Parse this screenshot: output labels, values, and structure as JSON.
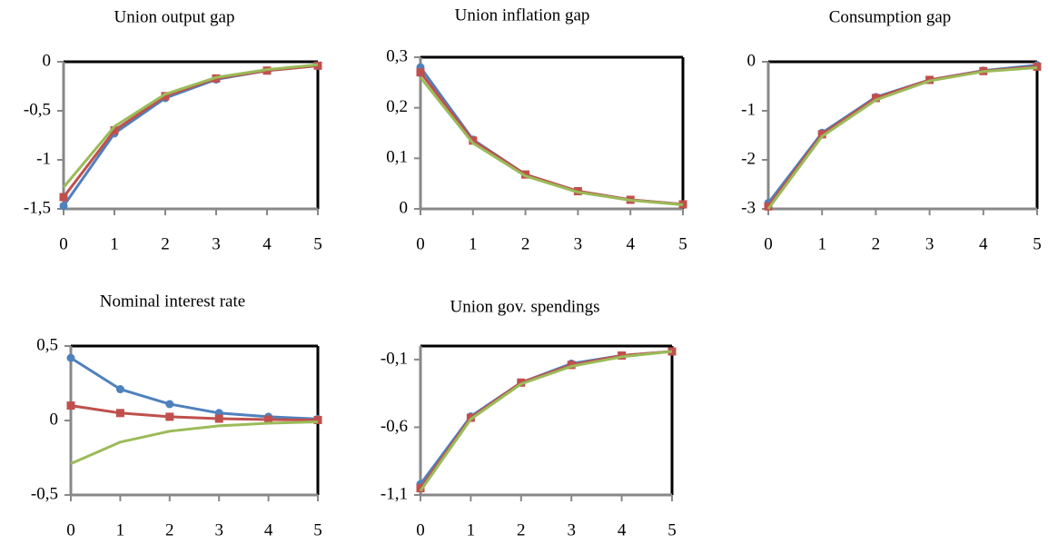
{
  "chart_data": [
    {
      "type": "line",
      "title": "Union output gap",
      "x": [
        0,
        1,
        2,
        3,
        4,
        5
      ],
      "xlim": [
        0,
        5
      ],
      "xticks": [
        0,
        1,
        2,
        3,
        4,
        5
      ],
      "ylim": [
        -1.5,
        0
      ],
      "yticks": [
        0,
        {
          "value": -0.5,
          "label": "-0,5"
        },
        -1,
        {
          "value": -1.5,
          "label": "-1,5"
        }
      ],
      "series": [
        {
          "color": "#4f81bd",
          "marker": "circle",
          "values": [
            -1.47,
            -0.73,
            -0.37,
            -0.18,
            -0.09,
            -0.04
          ]
        },
        {
          "color": "#c0504d",
          "marker": "square",
          "values": [
            -1.38,
            -0.7,
            -0.35,
            -0.17,
            -0.09,
            -0.04
          ]
        },
        {
          "color": "#9bbb59",
          "marker": "none",
          "values": [
            -1.28,
            -0.66,
            -0.33,
            -0.16,
            -0.08,
            -0.03
          ]
        }
      ]
    },
    {
      "type": "line",
      "title": "Union inflation gap",
      "x": [
        0,
        1,
        2,
        3,
        4,
        5
      ],
      "xlim": [
        0,
        5
      ],
      "xticks": [
        0,
        1,
        2,
        3,
        4,
        5
      ],
      "ylim": [
        0,
        0.3
      ],
      "yticks": [
        {
          "value": 0.3,
          "label": "0,3"
        },
        {
          "value": 0.2,
          "label": "0,2"
        },
        {
          "value": 0.1,
          "label": "0,1"
        },
        0
      ],
      "series": [
        {
          "color": "#4f81bd",
          "marker": "circle",
          "values": [
            0.28,
            0.137,
            0.068,
            0.035,
            0.018,
            0.009
          ]
        },
        {
          "color": "#c0504d",
          "marker": "square",
          "values": [
            0.27,
            0.135,
            0.068,
            0.035,
            0.018,
            0.009
          ]
        },
        {
          "color": "#9bbb59",
          "marker": "none",
          "values": [
            0.26,
            0.13,
            0.065,
            0.033,
            0.017,
            0.008
          ]
        }
      ]
    },
    {
      "type": "line",
      "title": "Consumption gap",
      "x": [
        0,
        1,
        2,
        3,
        4,
        5
      ],
      "xlim": [
        0,
        5
      ],
      "xticks": [
        0,
        1,
        2,
        3,
        4,
        5
      ],
      "ylim": [
        -3,
        0
      ],
      "yticks": [
        0,
        -1,
        -2,
        -3
      ],
      "series": [
        {
          "color": "#4f81bd",
          "marker": "circle",
          "values": [
            -2.88,
            -1.45,
            -0.72,
            -0.37,
            -0.18,
            -0.07
          ]
        },
        {
          "color": "#c0504d",
          "marker": "square",
          "values": [
            -2.95,
            -1.48,
            -0.74,
            -0.37,
            -0.19,
            -0.1
          ]
        },
        {
          "color": "#9bbb59",
          "marker": "none",
          "values": [
            -3.0,
            -1.52,
            -0.78,
            -0.39,
            -0.2,
            -0.12
          ]
        }
      ]
    },
    {
      "type": "line",
      "title": "Nominal interest rate",
      "x": [
        0,
        1,
        2,
        3,
        4,
        5
      ],
      "xlim": [
        0,
        5
      ],
      "xticks": [
        0,
        1,
        2,
        3,
        4,
        5
      ],
      "ylim": [
        -0.5,
        0.5
      ],
      "yticks": [
        {
          "value": 0.5,
          "label": "0,5"
        },
        0,
        {
          "value": -0.5,
          "label": "-0,5"
        }
      ],
      "series": [
        {
          "color": "#4f81bd",
          "marker": "circle",
          "values": [
            0.42,
            0.21,
            0.11,
            0.05,
            0.025,
            0.01
          ]
        },
        {
          "color": "#c0504d",
          "marker": "square",
          "values": [
            0.1,
            0.05,
            0.025,
            0.012,
            0.006,
            0.003
          ]
        },
        {
          "color": "#9bbb59",
          "marker": "none",
          "values": [
            -0.29,
            -0.145,
            -0.072,
            -0.036,
            -0.018,
            -0.009
          ]
        }
      ]
    },
    {
      "type": "line",
      "title": "Union gov. spendings",
      "x": [
        0,
        1,
        2,
        3,
        4,
        5
      ],
      "xlim": [
        0,
        5
      ],
      "xticks": [
        0,
        1,
        2,
        3,
        4,
        5
      ],
      "ylim": [
        -1.1,
        0
      ],
      "yticks": [
        {
          "value": -0.1,
          "label": "-0,1"
        },
        {
          "value": -0.6,
          "label": "-0,6"
        },
        {
          "value": -1.1,
          "label": "-1,1"
        }
      ],
      "series": [
        {
          "color": "#4f81bd",
          "marker": "circle",
          "values": [
            -1.02,
            -0.52,
            -0.27,
            -0.13,
            -0.07,
            -0.04
          ]
        },
        {
          "color": "#c0504d",
          "marker": "square",
          "values": [
            -1.05,
            -0.53,
            -0.27,
            -0.14,
            -0.07,
            -0.04
          ]
        },
        {
          "color": "#9bbb59",
          "marker": "none",
          "values": [
            -1.07,
            -0.54,
            -0.28,
            -0.15,
            -0.08,
            -0.04
          ]
        }
      ]
    }
  ]
}
